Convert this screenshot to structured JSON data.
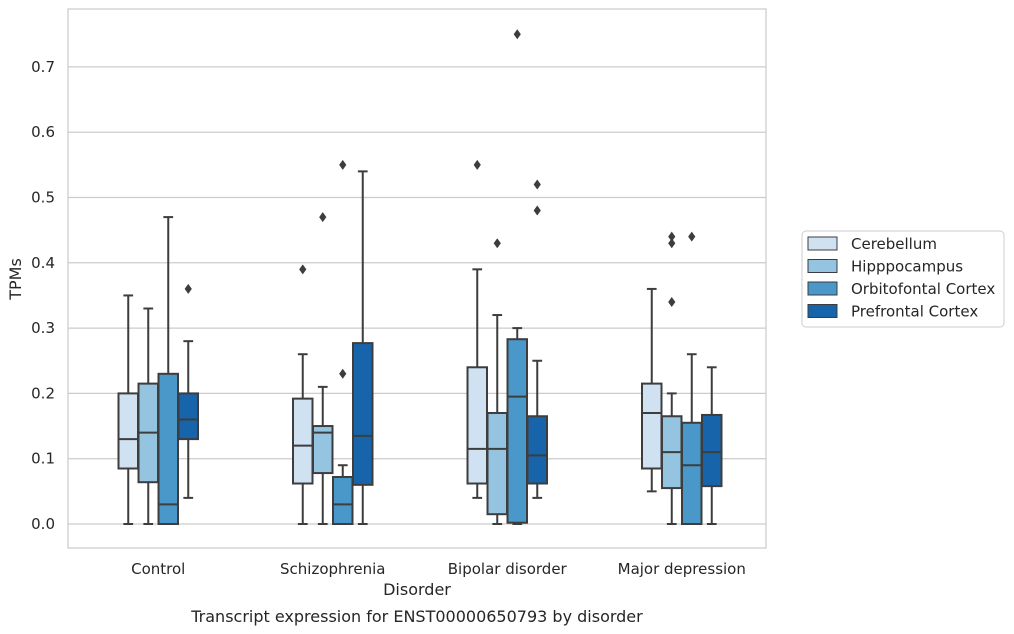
{
  "chart_data": {
    "type": "boxplot",
    "title": "",
    "caption": "Transcript expression for ENST00000650793 by disorder",
    "xlabel": "Disorder",
    "ylabel": "TPMs",
    "ylim": [
      -0.037,
      0.79
    ],
    "yticks": [
      0.0,
      0.1,
      0.2,
      0.3,
      0.4,
      0.5,
      0.6,
      0.7
    ],
    "ytick_labels": [
      "0.0",
      "0.1",
      "0.2",
      "0.3",
      "0.4",
      "0.5",
      "0.6",
      "0.7"
    ],
    "categories": [
      "Control",
      "Schizophrenia",
      "Bipolar disorder",
      "Major depression"
    ],
    "grid": "horizontal",
    "legend_position": "right",
    "series": [
      {
        "name": "Cerebellum",
        "color": "#d0e1f2",
        "boxes": [
          {
            "whislo": 0.0,
            "q1": 0.085,
            "med": 0.13,
            "q3": 0.2,
            "whishi": 0.35,
            "fliers": []
          },
          {
            "whislo": 0.0,
            "q1": 0.062,
            "med": 0.12,
            "q3": 0.192,
            "whishi": 0.26,
            "fliers": [
              0.39
            ]
          },
          {
            "whislo": 0.04,
            "q1": 0.062,
            "med": 0.115,
            "q3": 0.24,
            "whishi": 0.39,
            "fliers": [
              0.55
            ]
          },
          {
            "whislo": 0.05,
            "q1": 0.085,
            "med": 0.17,
            "q3": 0.215,
            "whishi": 0.36,
            "fliers": []
          }
        ]
      },
      {
        "name": "Hipppocampus",
        "color": "#94c4df",
        "boxes": [
          {
            "whislo": 0.0,
            "q1": 0.064,
            "med": 0.14,
            "q3": 0.215,
            "whishi": 0.33,
            "fliers": []
          },
          {
            "whislo": 0.0,
            "q1": 0.078,
            "med": 0.14,
            "q3": 0.15,
            "whishi": 0.21,
            "fliers": [
              0.47
            ]
          },
          {
            "whislo": 0.0,
            "q1": 0.015,
            "med": 0.115,
            "q3": 0.17,
            "whishi": 0.32,
            "fliers": [
              0.43
            ]
          },
          {
            "whislo": 0.0,
            "q1": 0.055,
            "med": 0.11,
            "q3": 0.165,
            "whishi": 0.2,
            "fliers": [
              0.34,
              0.43,
              0.44
            ]
          }
        ]
      },
      {
        "name": "Orbitofontal Cortex",
        "color": "#4a98c9",
        "boxes": [
          {
            "whislo": 0.0,
            "q1": 0.0,
            "med": 0.03,
            "q3": 0.23,
            "whishi": 0.47,
            "fliers": []
          },
          {
            "whislo": 0.0,
            "q1": 0.0,
            "med": 0.03,
            "q3": 0.072,
            "whishi": 0.09,
            "fliers": [
              0.23,
              0.55
            ]
          },
          {
            "whislo": 0.0,
            "q1": 0.002,
            "med": 0.195,
            "q3": 0.283,
            "whishi": 0.3,
            "fliers": [
              0.75
            ]
          },
          {
            "whislo": 0.0,
            "q1": 0.0,
            "med": 0.09,
            "q3": 0.155,
            "whishi": 0.26,
            "fliers": [
              0.44
            ]
          }
        ]
      },
      {
        "name": "Prefrontal Cortex",
        "color": "#1764ab",
        "boxes": [
          {
            "whislo": 0.04,
            "q1": 0.13,
            "med": 0.16,
            "q3": 0.2,
            "whishi": 0.28,
            "fliers": [
              0.36
            ]
          },
          {
            "whislo": 0.0,
            "q1": 0.06,
            "med": 0.135,
            "q3": 0.277,
            "whishi": 0.54,
            "fliers": []
          },
          {
            "whislo": 0.04,
            "q1": 0.062,
            "med": 0.105,
            "q3": 0.165,
            "whishi": 0.25,
            "fliers": [
              0.48,
              0.52
            ]
          },
          {
            "whislo": 0.0,
            "q1": 0.058,
            "med": 0.11,
            "q3": 0.167,
            "whishi": 0.24,
            "fliers": []
          }
        ]
      }
    ]
  }
}
